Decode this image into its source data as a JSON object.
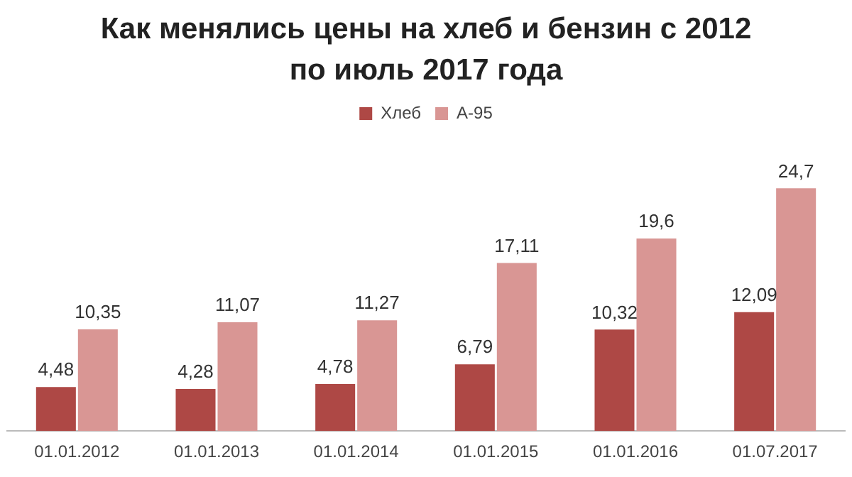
{
  "chart_data": {
    "type": "bar",
    "title": "Как менялись цены на хлеб и бензин с 2012 по июль 2017 года",
    "categories": [
      "01.01.2012",
      "01.01.2013",
      "01.01.2014",
      "01.01.2015",
      "01.01.2016",
      "01.07.2017"
    ],
    "series": [
      {
        "name": "Хлеб",
        "color": "#ae4845",
        "values": [
          4.48,
          4.28,
          4.78,
          6.79,
          10.32,
          12.09
        ],
        "value_labels": [
          "4,48",
          "4,28",
          "4,78",
          "6,79",
          "10,32",
          "12,09"
        ]
      },
      {
        "name": "А-95",
        "color": "#d99694",
        "values": [
          10.35,
          11.07,
          11.27,
          17.11,
          19.6,
          24.7
        ],
        "value_labels": [
          "10,35",
          "11,07",
          "11,27",
          "17,11",
          "19,6",
          "24,7"
        ]
      }
    ],
    "legend": "top"
  }
}
